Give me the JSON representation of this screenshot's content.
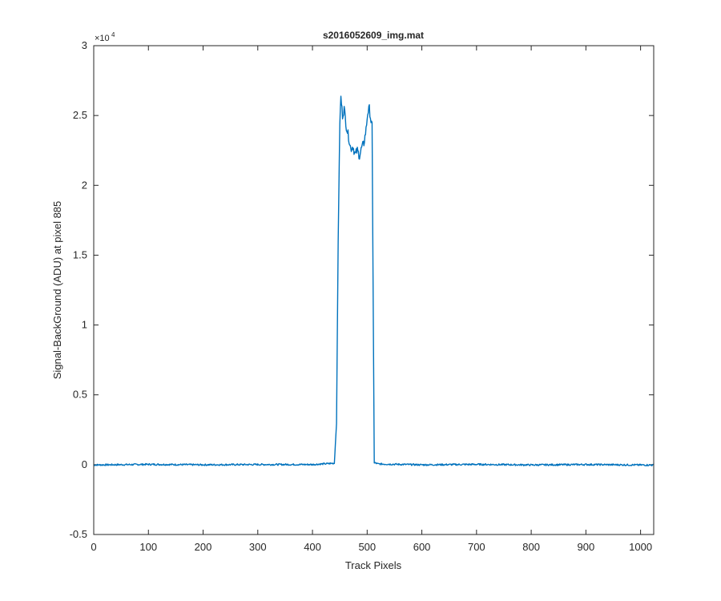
{
  "chart_data": {
    "type": "line",
    "title": "s2016052609_img.mat",
    "xlabel": "Track Pixels",
    "ylabel": "Signal-BackGround (ADU) at pixel 885",
    "y_exponent_label": "×10",
    "y_exponent_power": "4",
    "xlim": [
      0,
      1024
    ],
    "ylim": [
      -0.5,
      3
    ],
    "y_scale_factor": 10000,
    "xticks": [
      0,
      100,
      200,
      300,
      400,
      500,
      600,
      700,
      800,
      900,
      1000
    ],
    "yticks": [
      -0.5,
      0,
      0.5,
      1,
      1.5,
      2,
      2.5,
      3
    ],
    "xtick_labels": [
      "0",
      "100",
      "200",
      "300",
      "400",
      "500",
      "600",
      "700",
      "800",
      "900",
      "1000"
    ],
    "ytick_labels": [
      "-0.5",
      "0",
      "0.5",
      "1",
      "1.5",
      "2",
      "2.5",
      "3"
    ],
    "grid": false,
    "series": [
      {
        "color": "#0072BD",
        "x": [
          0,
          100,
          200,
          300,
          400,
          440,
          444,
          447,
          450,
          452,
          455,
          458,
          462,
          466,
          470,
          474,
          478,
          482,
          486,
          490,
          494,
          498,
          501,
          504,
          507,
          509,
          511,
          513,
          515,
          520,
          600,
          700,
          800,
          900,
          1024
        ],
        "y": [
          -0.002,
          0.002,
          -0.001,
          0.001,
          0.001,
          0.01,
          0.3,
          1.6,
          2.45,
          2.63,
          2.5,
          2.55,
          2.42,
          2.35,
          2.26,
          2.28,
          2.22,
          2.25,
          2.21,
          2.27,
          2.3,
          2.4,
          2.52,
          2.55,
          2.46,
          2.42,
          1.2,
          0.01,
          0.012,
          0.005,
          -0.001,
          0.002,
          -0.002,
          0.001,
          -0.003
        ]
      }
    ]
  }
}
